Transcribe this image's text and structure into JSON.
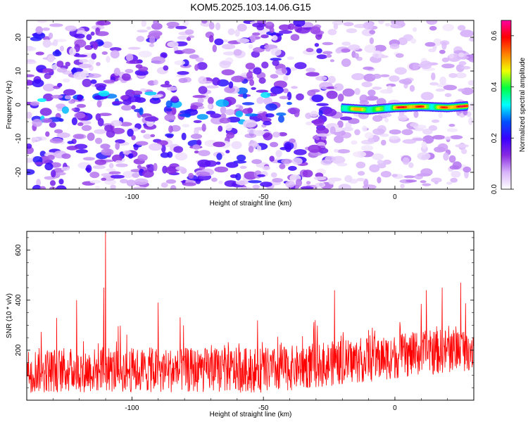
{
  "chart_data": [
    {
      "type": "heatmap",
      "title": "KOM5.2025.103.14.06.G15",
      "xlabel": "Height of straight line (km)",
      "ylabel": "Frequency (Hz)",
      "xlim": [
        -140,
        30
      ],
      "ylim": [
        -25,
        25
      ],
      "x_ticks": [
        -100,
        -50,
        0
      ],
      "y_ticks": [
        -20,
        -10,
        0,
        10,
        20
      ],
      "grid": false,
      "colorbar": {
        "label": "Normalized spectral amplitude",
        "range": [
          0,
          0.66
        ],
        "ticks": [
          "0.0",
          "0.2",
          "0.4",
          "0.6"
        ],
        "colors": [
          "#ffffff",
          "#d8b4fa",
          "#8a2be2",
          "#3a00ff",
          "#0050ff",
          "#00ffff",
          "#00ff40",
          "#f0ff00",
          "#ff8000",
          "#ff0000",
          "#ff00a0"
        ]
      },
      "ridge": {
        "description_points_x": [
          -20,
          -10,
          0,
          10,
          20,
          28
        ],
        "description_points_y": [
          -1,
          -1.5,
          -0.8,
          -0.5,
          -0.8,
          -0.3
        ],
        "peak_values": [
          0.45,
          0.5,
          0.55,
          0.6,
          0.62,
          0.55
        ]
      }
    },
    {
      "type": "line",
      "xlabel": "Height of straight line (km)",
      "ylabel": "SNR (10 * v/v)",
      "xlim": [
        -140,
        30
      ],
      "ylim": [
        0,
        675
      ],
      "x_ticks": [
        -100,
        -50,
        0
      ],
      "y_ticks": [
        200,
        400,
        600
      ],
      "grid": false,
      "series": [
        {
          "color": "#ff0000",
          "baseline": 120,
          "trend_end": 210,
          "peaks_x": [
            -110,
            -110.7,
            -23,
            -121,
            -90,
            12,
            18,
            25
          ],
          "peaks_y": [
            675,
            450,
            440,
            400,
            390,
            440,
            450,
            470
          ]
        }
      ]
    }
  ]
}
